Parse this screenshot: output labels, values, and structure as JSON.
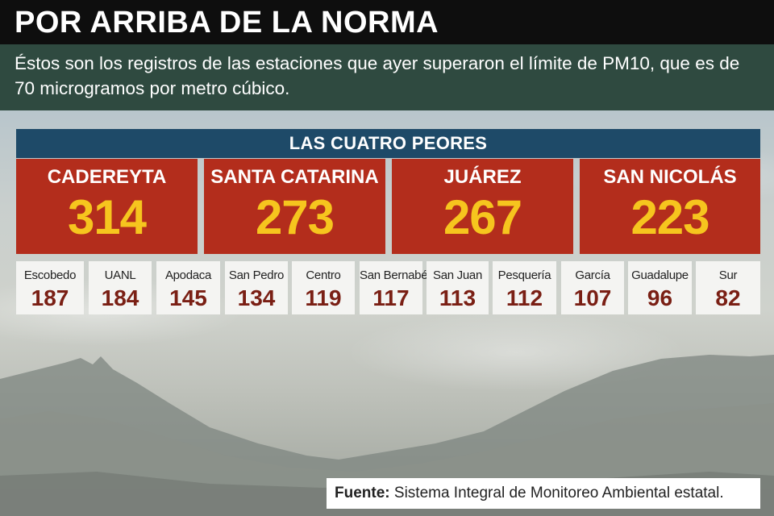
{
  "header": {
    "title": "POR ARRIBA DE LA NORMA",
    "subtitle": "Éstos son los registros de las estaciones que ayer superaron el límite de PM10, que es de 70 microgramos por metro cúbico."
  },
  "chart_data": {
    "type": "table",
    "title": "LAS CUATRO PEORES",
    "top4": [
      {
        "name": "CADEREYTA",
        "value": 314
      },
      {
        "name": "SANTA CATARINA",
        "value": 273
      },
      {
        "name": "JUÁREZ",
        "value": 267
      },
      {
        "name": "SAN NICOLÁS",
        "value": 223
      }
    ],
    "stations": [
      {
        "name": "Escobedo",
        "value": 187
      },
      {
        "name": "UANL",
        "value": 184
      },
      {
        "name": "Apodaca",
        "value": 145
      },
      {
        "name": "San Pedro",
        "value": 134
      },
      {
        "name": "Centro",
        "value": 119
      },
      {
        "name": "San Bernabé",
        "value": 117
      },
      {
        "name": "San Juan",
        "value": 113
      },
      {
        "name": "Pesquería",
        "value": 112
      },
      {
        "name": "García",
        "value": 107
      },
      {
        "name": "Guadalupe",
        "value": 96
      },
      {
        "name": "Sur",
        "value": 82
      }
    ]
  },
  "source": {
    "label": "Fuente:",
    "text": "Sistema Integral de Monitoreo Ambiental estatal."
  },
  "colors": {
    "title_bg": "#0e0e0e",
    "subtitle_bg": "#2f4a40",
    "top4_header_bg": "#1e4a68",
    "top4_bg": "#b32d1c",
    "top4_value": "#f6c51e",
    "station_value": "#7a1f14"
  }
}
